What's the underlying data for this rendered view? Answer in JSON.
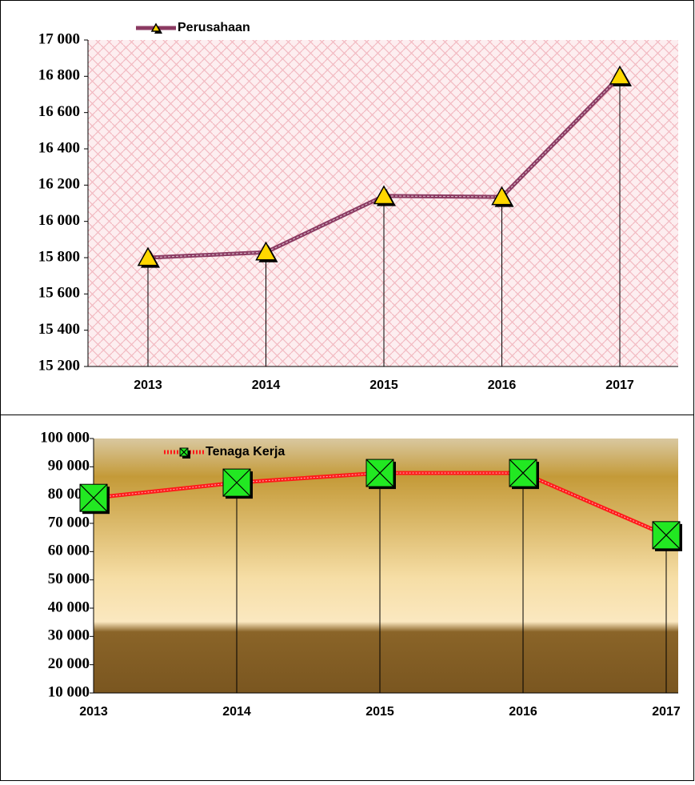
{
  "chart_data": [
    {
      "type": "line",
      "categories": [
        "2013",
        "2014",
        "2015",
        "2016",
        "2017"
      ],
      "series": [
        {
          "name": "Perusahaan",
          "color": "#8b3a62",
          "values": [
            15800,
            15830,
            16140,
            16135,
            16800
          ]
        }
      ],
      "ylim": [
        15200,
        17000
      ],
      "yticks": [
        {
          "value": 15200,
          "label": "15 200"
        },
        {
          "value": 15400,
          "label": "15 400"
        },
        {
          "value": 15600,
          "label": "15 600"
        },
        {
          "value": 15800,
          "label": "15 800"
        },
        {
          "value": 16000,
          "label": "16 000"
        },
        {
          "value": 16200,
          "label": "16 200"
        },
        {
          "value": 16400,
          "label": "16 400"
        },
        {
          "value": 16600,
          "label": "16 600"
        },
        {
          "value": 16800,
          "label": "16 800"
        },
        {
          "value": 17000,
          "label": "17 000"
        }
      ]
    },
    {
      "type": "line",
      "categories": [
        "2013",
        "2014",
        "2015",
        "2016",
        "2017"
      ],
      "series": [
        {
          "name": "Tenaga Kerja",
          "color": "#ff1a1a",
          "values": [
            79000,
            84400,
            87800,
            87800,
            65800
          ]
        }
      ],
      "ylim": [
        10000,
        100000
      ],
      "yticks": [
        {
          "value": 10000,
          "label": "10 000"
        },
        {
          "value": 20000,
          "label": "20 000"
        },
        {
          "value": 30000,
          "label": "30 000"
        },
        {
          "value": 40000,
          "label": "40 000"
        },
        {
          "value": 50000,
          "label": "50 000"
        },
        {
          "value": 60000,
          "label": "60 000"
        },
        {
          "value": 70000,
          "label": "70 000"
        },
        {
          "value": 80000,
          "label": "80 000"
        },
        {
          "value": 90000,
          "label": "90 000"
        },
        {
          "value": 100000,
          "label": "100 000"
        }
      ]
    }
  ]
}
